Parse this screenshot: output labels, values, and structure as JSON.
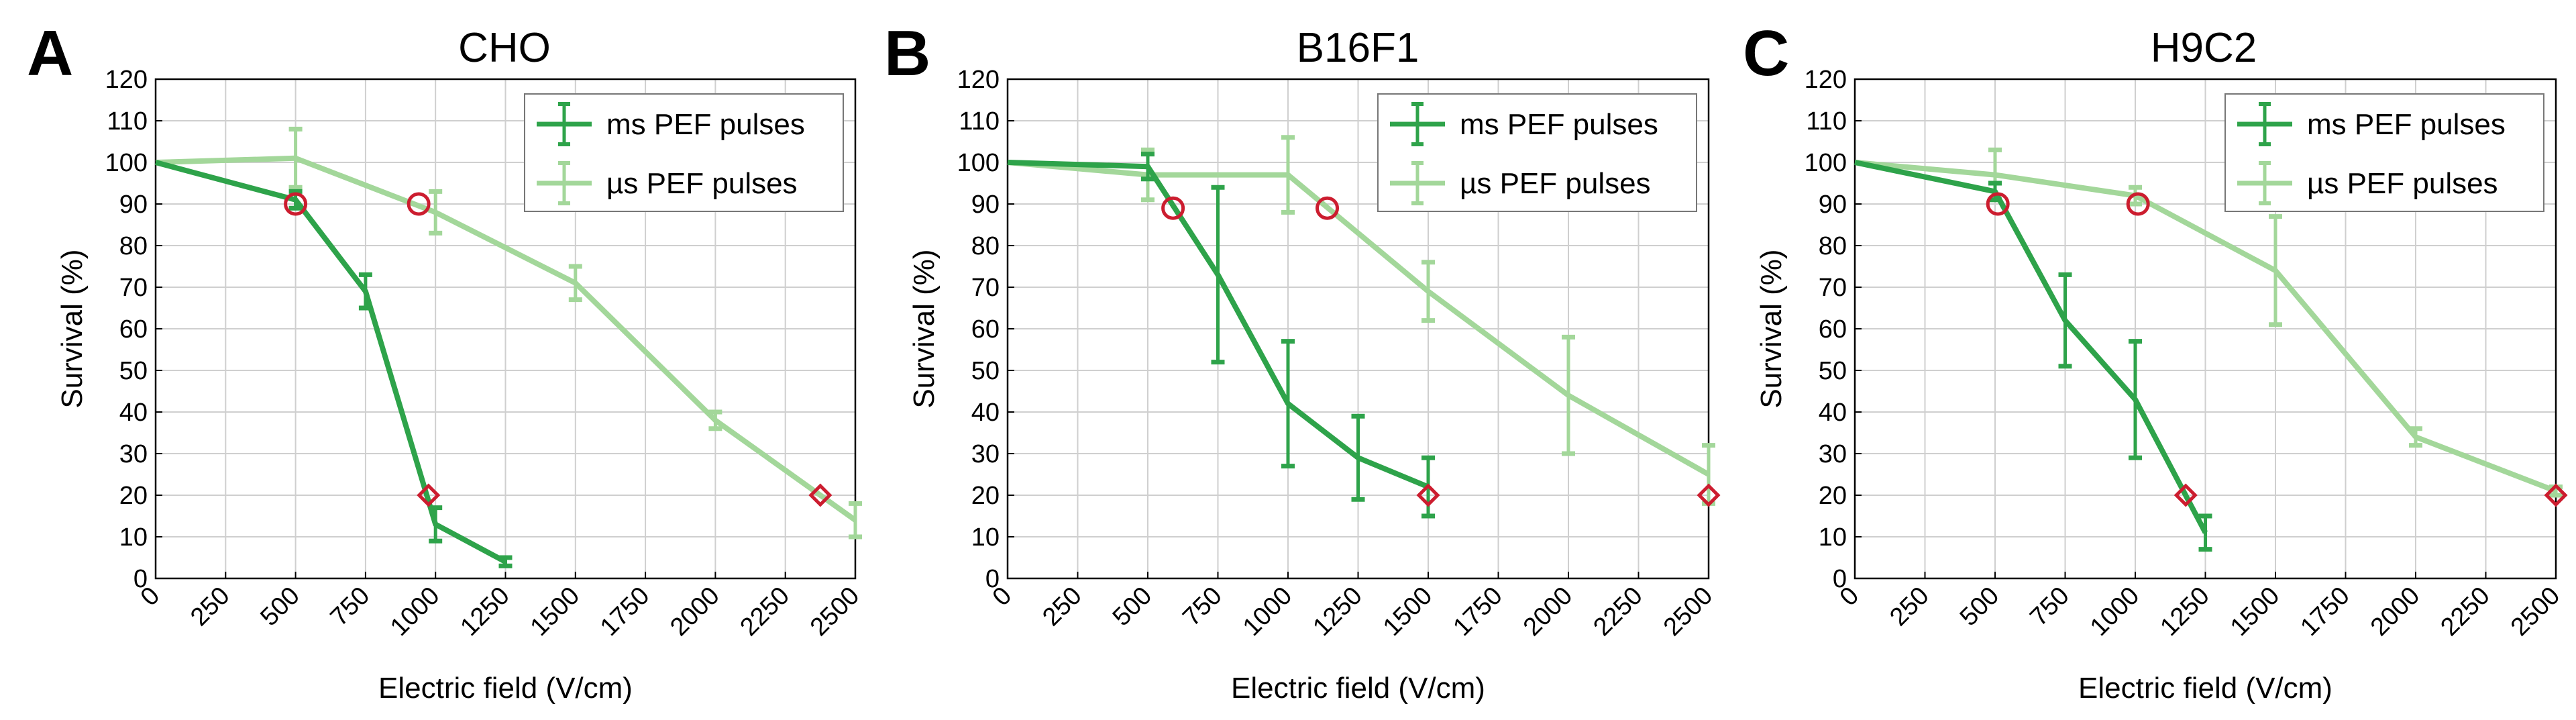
{
  "colors": {
    "ms": "#2ea34a",
    "us": "#a3d79a",
    "marker": "#cc1d2f"
  },
  "legend": {
    "ms_label": "ms PEF pulses",
    "us_label": "µs PEF pulses"
  },
  "chart_data": [
    {
      "type": "line",
      "panel_letter": "A",
      "title": "CHO",
      "xlabel": "Electric field (V/cm)",
      "ylabel": "Survival (%)",
      "xlim": [
        0,
        2500
      ],
      "ylim": [
        0,
        120
      ],
      "xticks": [
        0,
        250,
        500,
        750,
        1000,
        1250,
        1500,
        1750,
        2000,
        2250,
        2500
      ],
      "yticks": [
        0,
        10,
        20,
        30,
        40,
        50,
        60,
        70,
        80,
        90,
        100,
        110,
        120
      ],
      "grid": true,
      "legend_position": "top-right",
      "series": [
        {
          "name": "ms PEF pulses",
          "x": [
            0,
            500,
            750,
            1000,
            1250
          ],
          "y": [
            100,
            91,
            69,
            13,
            4
          ],
          "err": [
            0,
            2,
            4,
            4,
            1
          ]
        },
        {
          "name": "µs PEF pulses",
          "x": [
            0,
            500,
            1000,
            1500,
            2000,
            2500
          ],
          "y": [
            100,
            101,
            88,
            71,
            38,
            14
          ],
          "err": [
            0,
            7,
            5,
            4,
            2,
            4
          ]
        }
      ],
      "markers": [
        {
          "shape": "circle",
          "x": 500,
          "y": 90
        },
        {
          "shape": "circle",
          "x": 940,
          "y": 90
        },
        {
          "shape": "diamond",
          "x": 975,
          "y": 20
        },
        {
          "shape": "diamond",
          "x": 2375,
          "y": 20
        }
      ]
    },
    {
      "type": "line",
      "panel_letter": "B",
      "title": "B16F1",
      "xlabel": "Electric field (V/cm)",
      "ylabel": "Survival (%)",
      "xlim": [
        0,
        2500
      ],
      "ylim": [
        0,
        120
      ],
      "xticks": [
        0,
        250,
        500,
        750,
        1000,
        1250,
        1500,
        1750,
        2000,
        2250,
        2500
      ],
      "yticks": [
        0,
        10,
        20,
        30,
        40,
        50,
        60,
        70,
        80,
        90,
        100,
        110,
        120
      ],
      "grid": true,
      "legend_position": "top-right",
      "series": [
        {
          "name": "ms PEF pulses",
          "x": [
            0,
            500,
            750,
            1000,
            1250,
            1500
          ],
          "y": [
            100,
            99,
            73,
            42,
            29,
            22
          ],
          "err": [
            0,
            3,
            21,
            15,
            10,
            7
          ]
        },
        {
          "name": "µs PEF pulses",
          "x": [
            0,
            500,
            1000,
            1500,
            2000,
            2500
          ],
          "y": [
            100,
            97,
            97,
            69,
            44,
            25
          ],
          "err": [
            0,
            6,
            9,
            7,
            14,
            7
          ]
        }
      ],
      "markers": [
        {
          "shape": "circle",
          "x": 590,
          "y": 89
        },
        {
          "shape": "circle",
          "x": 1140,
          "y": 89
        },
        {
          "shape": "diamond",
          "x": 1500,
          "y": 20
        },
        {
          "shape": "diamond",
          "x": 2500,
          "y": 20
        }
      ]
    },
    {
      "type": "line",
      "panel_letter": "C",
      "title": "H9C2",
      "xlabel": "Electric field (V/cm)",
      "ylabel": "Survival (%)",
      "xlim": [
        0,
        2500
      ],
      "ylim": [
        0,
        120
      ],
      "xticks": [
        0,
        250,
        500,
        750,
        1000,
        1250,
        1500,
        1750,
        2000,
        2250,
        2500
      ],
      "yticks": [
        0,
        10,
        20,
        30,
        40,
        50,
        60,
        70,
        80,
        90,
        100,
        110,
        120
      ],
      "grid": true,
      "legend_position": "top-right",
      "series": [
        {
          "name": "ms PEF pulses",
          "x": [
            0,
            500,
            750,
            1000,
            1250
          ],
          "y": [
            100,
            93,
            62,
            43,
            11
          ],
          "err": [
            0,
            2,
            11,
            14,
            4
          ]
        },
        {
          "name": "µs PEF pulses",
          "x": [
            0,
            500,
            1000,
            1500,
            2000,
            2500
          ],
          "y": [
            100,
            97,
            92,
            74,
            34,
            21
          ],
          "err": [
            0,
            6,
            2,
            13,
            2,
            1
          ]
        }
      ],
      "markers": [
        {
          "shape": "circle",
          "x": 510,
          "y": 90
        },
        {
          "shape": "circle",
          "x": 1010,
          "y": 90
        },
        {
          "shape": "diamond",
          "x": 1180,
          "y": 20
        },
        {
          "shape": "diamond",
          "x": 2500,
          "y": 20
        }
      ]
    }
  ]
}
